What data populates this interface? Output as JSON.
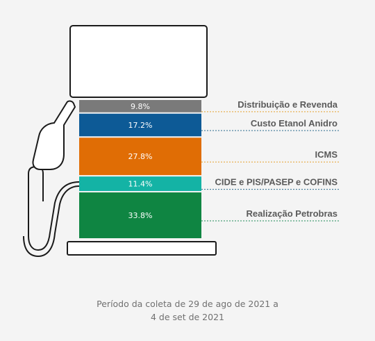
{
  "chart_data": {
    "type": "bar",
    "categories": [
      "Distribuição e Revenda",
      "Custo Etanol Anidro",
      "ICMS",
      "CIDE e PIS/PASEP e COFINS",
      "Realização Petrobras"
    ],
    "values": [
      9.8,
      17.2,
      27.8,
      11.4,
      33.8
    ],
    "value_labels": [
      "9.8%",
      "17.2%",
      "27.8%",
      "11.4%",
      "33.8%"
    ],
    "colors": [
      "#7a7a7a",
      "#0d5a96",
      "#e06d05",
      "#14b3a5",
      "#0f8542"
    ],
    "leader_colors": [
      "#e3a02c",
      "#2a6a8c",
      "#e3a02c",
      "#2a6a8c",
      "#1e8a58"
    ],
    "stacked": true
  },
  "footer": {
    "line1": "Período da coleta de 29 de ago de 2021 a",
    "line2": "4 de set de 2021"
  }
}
